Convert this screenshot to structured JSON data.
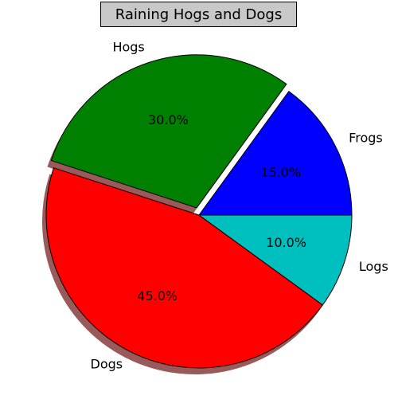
{
  "chart_data": {
    "type": "pie",
    "title": "Raining Hogs and Dogs",
    "slices": [
      {
        "label": "Frogs",
        "value": 15,
        "pct_label": "15.0%",
        "color": "#0000ff",
        "explode": 0
      },
      {
        "label": "Hogs",
        "value": 30,
        "pct_label": "30.0%",
        "color": "#008000",
        "explode": 0.05
      },
      {
        "label": "Dogs",
        "value": 45,
        "pct_label": "45.0%",
        "color": "#ff0000",
        "explode": 0
      },
      {
        "label": "Logs",
        "value": 10,
        "pct_label": "10.0%",
        "color": "#00bfbf",
        "explode": 0
      }
    ],
    "start_angle_deg": 0,
    "direction": "counterclockwise",
    "shadow": true,
    "shadow_color": "#9a5a5a"
  }
}
